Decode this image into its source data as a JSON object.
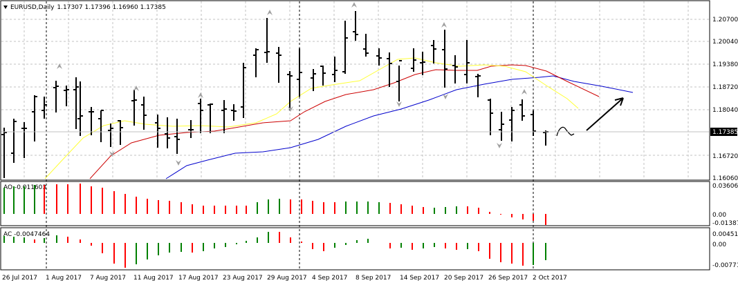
{
  "main": {
    "symbol": "EURUSD,Daily",
    "ohlc": "1.17307 1.17396 1.16960 1.17385",
    "current_price": "1.17385",
    "price_labels": [
      "1.20700",
      "1.20040",
      "1.19380",
      "1.18720",
      "1.18040",
      "1.17385",
      "1.16720",
      "1.16060"
    ]
  },
  "ao": {
    "label": "AO -0.011603",
    "scale_labels": [
      "0.036064",
      "0.00",
      "-0.013873"
    ]
  },
  "ac": {
    "label": "AC -0.0047464",
    "scale_labels": [
      "0.004516",
      "0.00",
      "-0.007716"
    ]
  },
  "date_labels": [
    "26 Jul 2017",
    "1 Aug 2017",
    "7 Aug 2017",
    "11 Aug 2017",
    "17 Aug 2017",
    "23 Aug 2017",
    "29 Aug 2017",
    "4 Sep 2017",
    "8 Sep 2017",
    "14 Sep 2017",
    "20 Sep 2017",
    "26 Sep 2017",
    "2 Oct 2017"
  ],
  "colors": {
    "bars": "#000000",
    "alligator_jaw": "#0000cc",
    "alligator_teeth": "#cc0000",
    "alligator_lips": "#ffff33",
    "osc_up": "#008000",
    "osc_down": "#ff0000",
    "fractal": "#a0a0a0",
    "grid": "#c0c0c0"
  },
  "icons": [
    "menu-triangle-icon",
    "fractal-up-arrow-icon",
    "fractal-down-arrow-icon",
    "hand-drawn-arrow-icon"
  ]
}
